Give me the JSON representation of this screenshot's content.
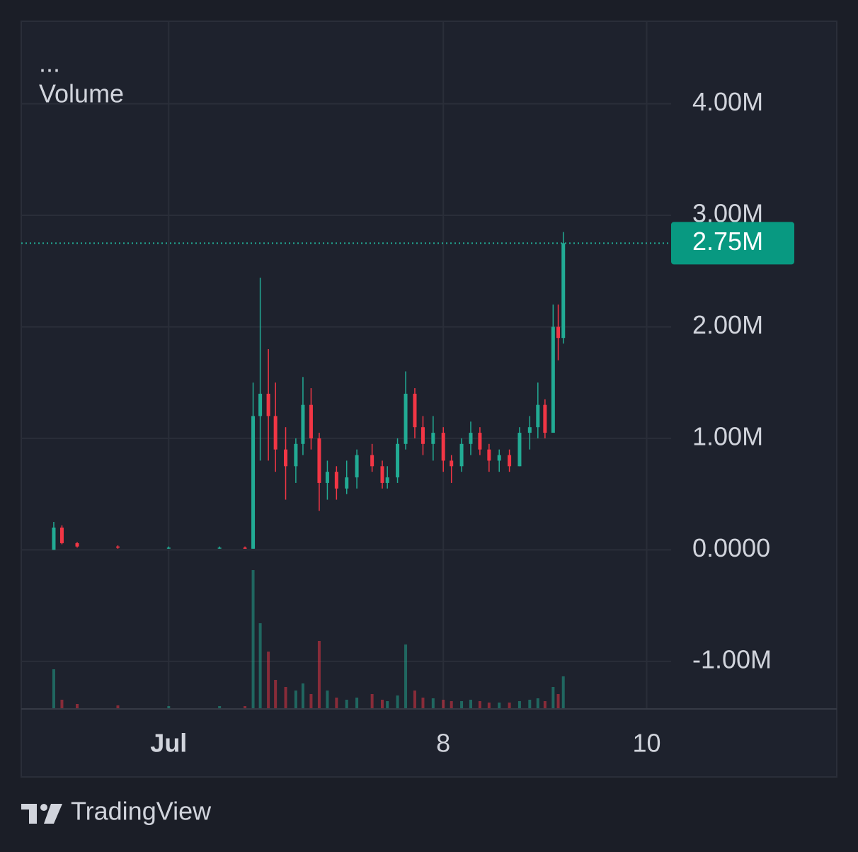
{
  "chart_data": {
    "type": "candlestick",
    "menu": "...",
    "series_label": "Volume",
    "brand": "TradingView",
    "x": [
      4.17,
      4.25,
      4.4,
      4.8,
      5.3,
      5.8,
      6.05,
      6.13,
      6.2,
      6.28,
      6.35,
      6.45,
      6.55,
      6.62,
      6.7,
      6.78,
      6.86,
      6.95,
      7.05,
      7.15,
      7.3,
      7.4,
      7.45,
      7.55,
      7.63,
      7.72,
      7.8,
      7.9,
      8.0,
      8.08,
      8.18,
      8.27,
      8.36,
      8.45,
      8.55,
      8.65,
      8.75,
      8.85,
      8.93,
      9.0,
      9.08,
      9.13,
      9.18
    ],
    "open": [
      0,
      0.2,
      0.06,
      0.03,
      0.02,
      0.02,
      0.02,
      0.01,
      1.2,
      1.4,
      1.2,
      0.9,
      0.75,
      0.95,
      1.3,
      1.0,
      0.6,
      0.7,
      0.55,
      0.65,
      0.85,
      0.75,
      0.6,
      0.65,
      0.95,
      1.4,
      1.1,
      0.95,
      1.05,
      0.8,
      0.75,
      0.95,
      1.05,
      0.9,
      0.8,
      0.85,
      0.75,
      1.05,
      1.1,
      1.3,
      1.05,
      2.0,
      1.9
    ],
    "high": [
      0.25,
      0.22,
      0.07,
      0.04,
      0.03,
      0.03,
      0.03,
      1.5,
      2.44,
      1.8,
      1.5,
      1.1,
      1.0,
      1.55,
      1.45,
      1.05,
      0.8,
      0.75,
      0.8,
      0.9,
      0.95,
      0.8,
      0.75,
      1.0,
      1.6,
      1.45,
      1.2,
      1.2,
      1.1,
      0.85,
      1.0,
      1.15,
      1.1,
      0.95,
      0.9,
      0.9,
      1.1,
      1.2,
      1.5,
      1.35,
      2.2,
      2.2,
      2.85
    ],
    "low": [
      0,
      0.05,
      0.02,
      0.01,
      0.01,
      0.01,
      0.01,
      0.01,
      0.8,
      0.8,
      0.7,
      0.45,
      0.6,
      0.85,
      0.9,
      0.35,
      0.45,
      0.45,
      0.5,
      0.55,
      0.7,
      0.55,
      0.55,
      0.6,
      0.9,
      1.0,
      0.85,
      0.8,
      0.7,
      0.6,
      0.7,
      0.85,
      0.85,
      0.7,
      0.7,
      0.7,
      0.75,
      0.9,
      1.0,
      1.0,
      1.05,
      1.7,
      1.85
    ],
    "close": [
      0.2,
      0.06,
      0.03,
      0.02,
      0.02,
      0.02,
      0.01,
      1.2,
      1.4,
      1.2,
      0.9,
      0.75,
      0.95,
      1.3,
      1.0,
      0.6,
      0.7,
      0.55,
      0.65,
      0.85,
      0.75,
      0.6,
      0.65,
      0.95,
      1.4,
      1.1,
      0.95,
      1.05,
      0.8,
      0.75,
      0.95,
      1.05,
      0.9,
      0.8,
      0.85,
      0.75,
      1.05,
      1.1,
      1.3,
      1.05,
      2.0,
      1.9,
      2.75
    ],
    "volume": [
      55,
      12,
      6,
      4,
      3,
      3,
      3,
      195,
      120,
      80,
      40,
      30,
      25,
      35,
      20,
      95,
      25,
      15,
      12,
      15,
      20,
      12,
      10,
      18,
      90,
      25,
      15,
      14,
      12,
      10,
      10,
      12,
      10,
      8,
      8,
      8,
      10,
      12,
      14,
      10,
      30,
      20,
      45
    ],
    "up_color": "#22ab94",
    "down_color": "#f23645",
    "xlim": [
      3.85,
      10.24
    ],
    "ylim": [
      -1.42,
      4.74
    ],
    "xticks": [
      {
        "value": 5.3,
        "label": "Jul"
      },
      8,
      10
    ],
    "yticks": [
      {
        "value": -1,
        "label": "-1.00M"
      },
      {
        "value": 0,
        "label": "0.0000"
      },
      {
        "value": 1,
        "label": "1.00M"
      },
      {
        "value": 2,
        "label": "2.00M"
      },
      {
        "value": 3,
        "label": "3.00M"
      },
      {
        "value": 4,
        "label": "4.00M"
      }
    ],
    "last_price": {
      "value": 2.75,
      "label": "2.75M"
    },
    "grid": true
  }
}
